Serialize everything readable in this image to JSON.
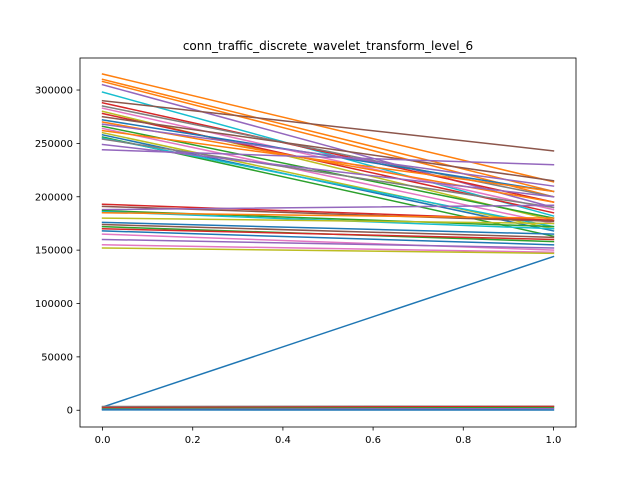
{
  "chart_data": {
    "type": "line",
    "title": "conn_traffic_discrete_wavelet_transform_level_6",
    "xlabel": "",
    "ylabel": "",
    "xlim": [
      -0.05,
      1.05
    ],
    "ylim": [
      -15700,
      330000
    ],
    "xticks": [
      0.0,
      0.2,
      0.4,
      0.6,
      0.8,
      1.0
    ],
    "xtick_labels": [
      "0.0",
      "0.2",
      "0.4",
      "0.6",
      "0.8",
      "1.0"
    ],
    "yticks": [
      0,
      50000,
      100000,
      150000,
      200000,
      250000,
      300000
    ],
    "ytick_labels": [
      "0",
      "50000",
      "100000",
      "150000",
      "200000",
      "250000",
      "300000"
    ],
    "grid": false,
    "x": [
      0.0,
      1.0
    ],
    "series": [
      {
        "color": "#1f77b4",
        "values": [
          3000,
          144000
        ]
      },
      {
        "color": "#ff7f0e",
        "values": [
          315000,
          214000
        ]
      },
      {
        "color": "#ff7f0e",
        "values": [
          310000,
          205000
        ]
      },
      {
        "color": "#ff7f0e",
        "values": [
          308000,
          200000
        ]
      },
      {
        "color": "#9467bd",
        "values": [
          305000,
          190000
        ]
      },
      {
        "color": "#17becf",
        "values": [
          298000,
          182000
        ]
      },
      {
        "color": "#8c564b",
        "values": [
          290000,
          243000
        ]
      },
      {
        "color": "#d62728",
        "values": [
          288000,
          195000
        ]
      },
      {
        "color": "#7f7f7f",
        "values": [
          285000,
          200000
        ]
      },
      {
        "color": "#e377c2",
        "values": [
          283000,
          188000
        ]
      },
      {
        "color": "#bcbd22",
        "values": [
          280000,
          178000
        ]
      },
      {
        "color": "#d62728",
        "values": [
          278000,
          185000
        ]
      },
      {
        "color": "#8c564b",
        "values": [
          275000,
          215000
        ]
      },
      {
        "color": "#1f77b4",
        "values": [
          272000,
          205000
        ]
      },
      {
        "color": "#ff7f0e",
        "values": [
          270000,
          195000
        ]
      },
      {
        "color": "#9467bd",
        "values": [
          268000,
          210000
        ]
      },
      {
        "color": "#2ca02c",
        "values": [
          266000,
          180000
        ]
      },
      {
        "color": "#e377c2",
        "values": [
          264000,
          175000
        ]
      },
      {
        "color": "#ff7f0e",
        "values": [
          262000,
          205000
        ]
      },
      {
        "color": "#bcbd22",
        "values": [
          260000,
          170000
        ]
      },
      {
        "color": "#1f77b4",
        "values": [
          258000,
          168000
        ]
      },
      {
        "color": "#2ca02c",
        "values": [
          256000,
          163000
        ]
      },
      {
        "color": "#17becf",
        "values": [
          255000,
          172000
        ]
      },
      {
        "color": "#7f7f7f",
        "values": [
          254000,
          190000
        ]
      },
      {
        "color": "#9467bd",
        "values": [
          249000,
          200000
        ]
      },
      {
        "color": "#9467bd",
        "values": [
          244000,
          230000
        ]
      },
      {
        "color": "#d62728",
        "values": [
          193000,
          178000
        ]
      },
      {
        "color": "#8c564b",
        "values": [
          191000,
          177000
        ]
      },
      {
        "color": "#9467bd",
        "values": [
          188000,
          192000
        ]
      },
      {
        "color": "#2ca02c",
        "values": [
          187000,
          172000
        ]
      },
      {
        "color": "#17becf",
        "values": [
          186000,
          170000
        ]
      },
      {
        "color": "#ff7f0e",
        "values": [
          185000,
          180000
        ]
      },
      {
        "color": "#bcbd22",
        "values": [
          180000,
          175000
        ]
      },
      {
        "color": "#1f77b4",
        "values": [
          176000,
          165000
        ]
      },
      {
        "color": "#8c564b",
        "values": [
          174000,
          162000
        ]
      },
      {
        "color": "#2ca02c",
        "values": [
          172000,
          158000
        ]
      },
      {
        "color": "#d62728",
        "values": [
          170000,
          160000
        ]
      },
      {
        "color": "#1f77b4",
        "values": [
          168000,
          155000
        ]
      },
      {
        "color": "#e377c2",
        "values": [
          165000,
          150000
        ]
      },
      {
        "color": "#9467bd",
        "values": [
          160000,
          152000
        ]
      },
      {
        "color": "#e377c2",
        "values": [
          155000,
          148000
        ]
      },
      {
        "color": "#bcbd22",
        "values": [
          152000,
          147000
        ]
      },
      {
        "color": "#7f7f7f",
        "values": [
          3500,
          3800
        ]
      },
      {
        "color": "#d62728",
        "values": [
          2500,
          3500
        ]
      },
      {
        "color": "#2ca02c",
        "values": [
          1500,
          2500
        ]
      },
      {
        "color": "#9467bd",
        "values": [
          800,
          1500
        ]
      },
      {
        "color": "#1f77b4",
        "values": [
          300,
          200
        ]
      }
    ]
  }
}
